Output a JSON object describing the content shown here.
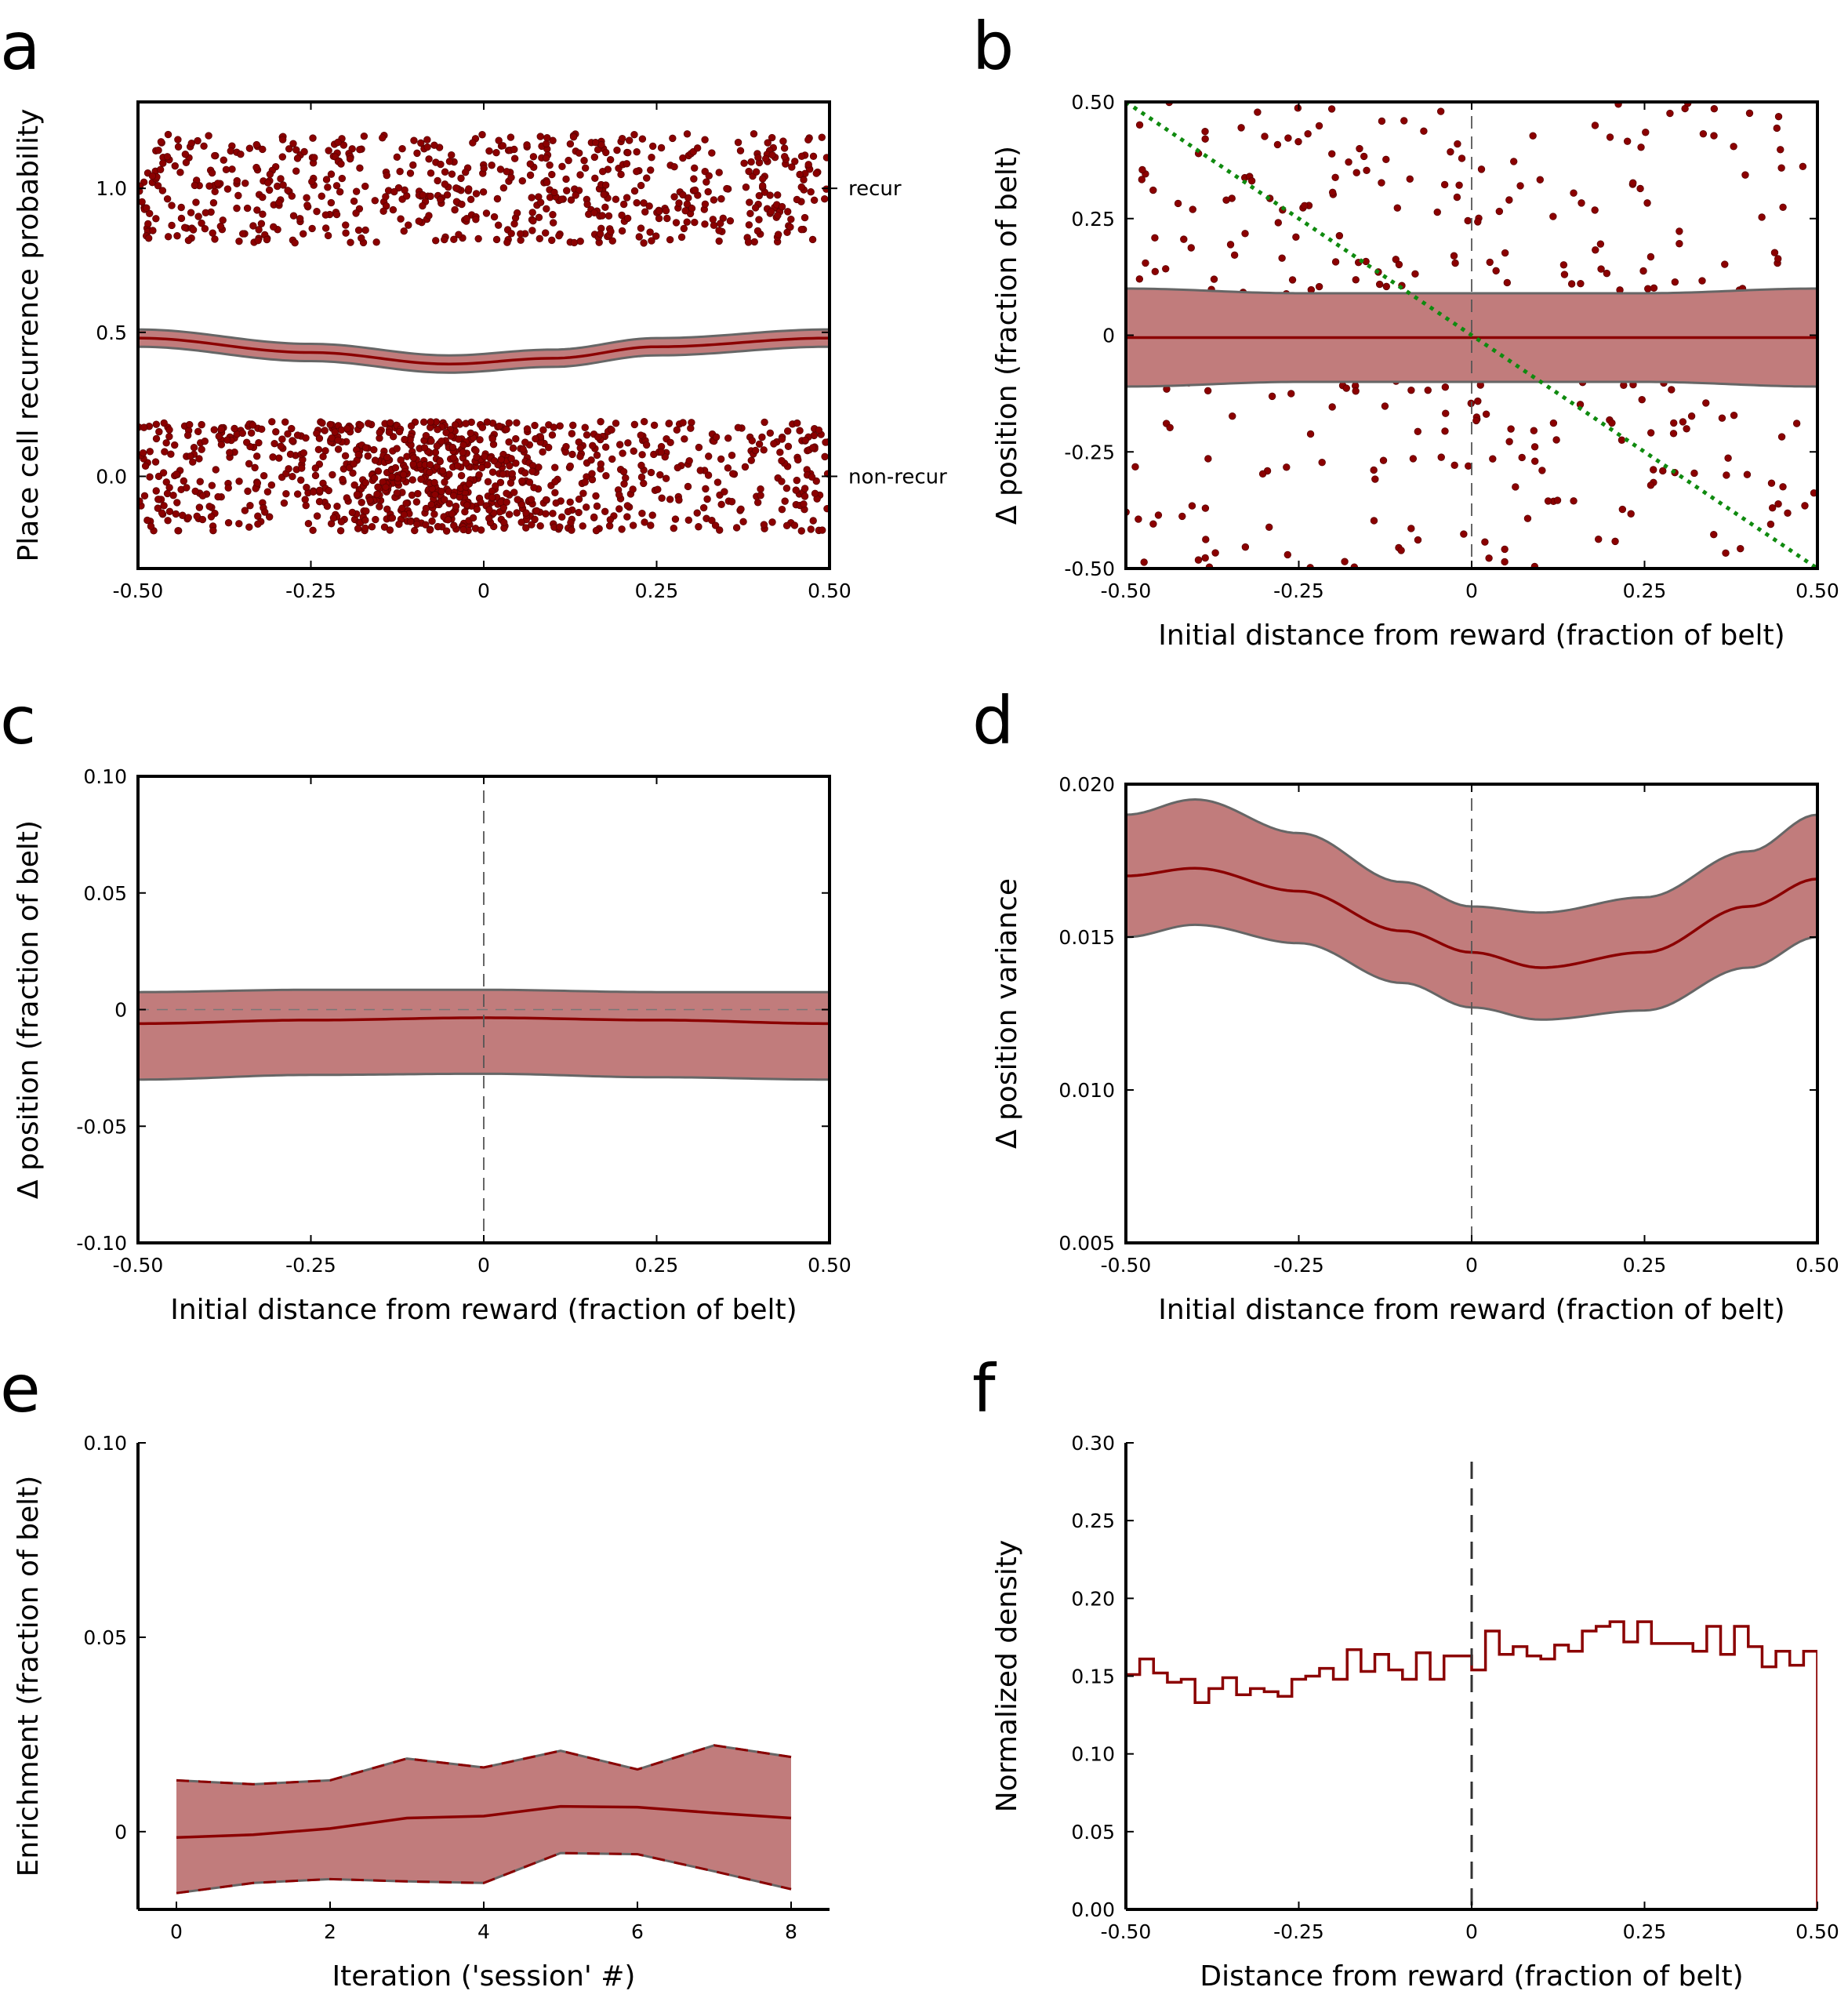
{
  "figure": {
    "colors": {
      "series": "#8b0000",
      "band_fill": "#c17c7c",
      "band_edge": "#666666",
      "diagonal": "#0f8a0f",
      "marker": "#8b0000"
    }
  },
  "chart_data": [
    {
      "panel": "a",
      "type": "scatter",
      "xlabel": "",
      "ylabel": "Place cell recurrence probability",
      "xlim": [
        -0.5,
        0.5
      ],
      "ylim": [
        -0.32,
        1.3
      ],
      "x_ticks": [
        -0.5,
        -0.25,
        0,
        0.25,
        0.5
      ],
      "x_tick_labels": [
        "-0.50",
        "-0.25",
        "0",
        "0.25",
        "0.50"
      ],
      "y_ticks": [
        0,
        0.5,
        1
      ],
      "y_tick_labels": [
        "0.0",
        "0.5",
        "1.0"
      ],
      "annotations": [
        {
          "text": "recur",
          "y": 1.0
        },
        {
          "text": "non-recur",
          "y": 0.0
        }
      ],
      "points_recur": {
        "y_center": 1.0,
        "jitter": 0.19,
        "count": 640,
        "x_range": [
          -0.5,
          0.5
        ]
      },
      "points_nonrecur": {
        "y_center": 0.0,
        "jitter": 0.19,
        "count": 1000,
        "x_range": [
          -0.5,
          0.5
        ],
        "densest_near_x": -0.07
      },
      "fit_line": {
        "x": [
          -0.5,
          -0.25,
          -0.05,
          0.1,
          0.25,
          0.5
        ],
        "y": [
          0.48,
          0.43,
          0.39,
          0.41,
          0.45,
          0.48
        ]
      },
      "fit_band_halfwidth": 0.03
    },
    {
      "panel": "b",
      "type": "scatter",
      "xlabel": "Initial distance from reward (fraction of belt)",
      "ylabel": "Δ position (fraction of belt)",
      "xlim": [
        -0.5,
        0.5
      ],
      "ylim": [
        -0.5,
        0.5
      ],
      "x_ticks": [
        -0.5,
        -0.25,
        0,
        0.25,
        0.5
      ],
      "x_tick_labels": [
        "-0.50",
        "-0.25",
        "0",
        "0.25",
        "0.50"
      ],
      "y_ticks": [
        -0.5,
        -0.25,
        0,
        0.25,
        0.5
      ],
      "y_tick_labels": [
        "-0.50",
        "-0.25",
        "0",
        "0.25",
        "0.50"
      ],
      "points": {
        "count": 700,
        "center_sd": 0.05,
        "center_fraction": 0.55
      },
      "mean_line": {
        "x": [
          -0.5,
          0.5
        ],
        "y": [
          -0.005,
          -0.005
        ]
      },
      "band": {
        "x": [
          -0.5,
          -0.25,
          0,
          0.25,
          0.5
        ],
        "upper": [
          0.1,
          0.09,
          0.09,
          0.09,
          0.1
        ],
        "lower": [
          -0.11,
          -0.1,
          -0.1,
          -0.1,
          -0.11
        ]
      },
      "reference_line": {
        "x": [
          -0.5,
          0.5
        ],
        "y": [
          0.5,
          -0.5
        ],
        "style": "dotted"
      },
      "vline_x": 0
    },
    {
      "panel": "c",
      "type": "line",
      "xlabel": "Initial distance from reward (fraction of belt)",
      "ylabel": "Δ position (fraction of belt)",
      "xlim": [
        -0.5,
        0.5
      ],
      "ylim": [
        -0.1,
        0.1
      ],
      "x_ticks": [
        -0.5,
        -0.25,
        0,
        0.25,
        0.5
      ],
      "x_tick_labels": [
        "-0.50",
        "-0.25",
        "0",
        "0.25",
        "0.50"
      ],
      "y_ticks": [
        -0.1,
        -0.05,
        0,
        0.05,
        0.1
      ],
      "y_tick_labels": [
        "-0.10",
        "-0.05",
        "0",
        "0.05",
        "0.10"
      ],
      "mean_line": {
        "x": [
          -0.5,
          -0.25,
          0,
          0.25,
          0.5
        ],
        "y": [
          -0.006,
          -0.0045,
          -0.0035,
          -0.0045,
          -0.006
        ]
      },
      "band": {
        "x": [
          -0.5,
          -0.25,
          0,
          0.25,
          0.5
        ],
        "upper": [
          0.0075,
          0.0085,
          0.0085,
          0.0075,
          0.0075
        ],
        "lower": [
          -0.03,
          -0.028,
          -0.0275,
          -0.029,
          -0.03
        ]
      },
      "hline_y": 0,
      "vline_x": 0
    },
    {
      "panel": "d",
      "type": "line",
      "xlabel": "Initial distance from reward (fraction of belt)",
      "ylabel": "Δ position variance",
      "xlim": [
        -0.5,
        0.5
      ],
      "ylim": [
        0.005,
        0.02
      ],
      "x_ticks": [
        -0.5,
        -0.25,
        0,
        0.25,
        0.5
      ],
      "x_tick_labels": [
        "-0.50",
        "-0.25",
        "0",
        "0.25",
        "0.50"
      ],
      "y_ticks": [
        0.005,
        0.01,
        0.015,
        0.02
      ],
      "y_tick_labels": [
        "0.005",
        "0.010",
        "0.015",
        "0.020"
      ],
      "mean_line": {
        "x": [
          -0.5,
          -0.4,
          -0.25,
          -0.1,
          0,
          0.1,
          0.25,
          0.4,
          0.5
        ],
        "y": [
          0.017,
          0.01725,
          0.0165,
          0.0152,
          0.0145,
          0.014,
          0.0145,
          0.016,
          0.0169
        ]
      },
      "band": {
        "x": [
          -0.5,
          -0.4,
          -0.25,
          -0.1,
          0,
          0.1,
          0.25,
          0.4,
          0.5
        ],
        "upper": [
          0.019,
          0.0195,
          0.0184,
          0.0168,
          0.016,
          0.0158,
          0.0163,
          0.0178,
          0.019
        ],
        "lower": [
          0.015,
          0.0154,
          0.0148,
          0.0135,
          0.0127,
          0.0123,
          0.0126,
          0.014,
          0.015
        ]
      },
      "vline_x": 0
    },
    {
      "panel": "e",
      "type": "line",
      "xlabel": "Iteration ('session' #)",
      "ylabel": "Enrichment (fraction of belt)",
      "xlim": [
        -0.5,
        8.5
      ],
      "ylim": [
        -0.02,
        0.1
      ],
      "x_ticks": [
        0,
        2,
        4,
        6,
        8
      ],
      "x_tick_labels": [
        "0",
        "2",
        "4",
        "6",
        "8"
      ],
      "y_ticks": [
        0,
        0.05,
        0.1
      ],
      "y_tick_labels": [
        "0",
        "0.05",
        "0.10"
      ],
      "x": [
        0,
        1,
        2,
        3,
        4,
        5,
        6,
        7,
        8
      ],
      "mean": [
        -0.0015,
        -0.0008,
        0.0008,
        0.0035,
        0.004,
        0.0065,
        0.0063,
        0.0048,
        0.0035
      ],
      "upper": [
        0.0132,
        0.0122,
        0.0132,
        0.0188,
        0.0165,
        0.0208,
        0.016,
        0.0222,
        0.0192
      ],
      "lower": [
        -0.0158,
        -0.0132,
        -0.0122,
        -0.0128,
        -0.0132,
        -0.0055,
        -0.0058,
        -0.0102,
        -0.0148
      ]
    },
    {
      "panel": "f",
      "type": "line",
      "step": true,
      "xlabel": "Distance from reward (fraction of belt)",
      "ylabel": "Normalized density",
      "xlim": [
        -0.5,
        0.5
      ],
      "ylim": [
        0,
        0.3
      ],
      "x_ticks": [
        -0.5,
        -0.25,
        0,
        0.25,
        0.5
      ],
      "x_tick_labels": [
        "-0.50",
        "-0.25",
        "0",
        "0.25",
        "0.50"
      ],
      "y_ticks": [
        0,
        0.05,
        0.1,
        0.15,
        0.2,
        0.25,
        0.3
      ],
      "y_tick_labels": [
        "0.00",
        "0.05",
        "0.10",
        "0.15",
        "0.20",
        "0.25",
        "0.30"
      ],
      "bin_width": 0.02,
      "bins_left_edge_start": -0.5,
      "values": [
        0.151,
        0.161,
        0.152,
        0.146,
        0.148,
        0.133,
        0.142,
        0.149,
        0.138,
        0.142,
        0.14,
        0.137,
        0.148,
        0.15,
        0.155,
        0.148,
        0.167,
        0.153,
        0.164,
        0.154,
        0.148,
        0.165,
        0.148,
        0.163,
        0.163,
        0.154,
        0.179,
        0.164,
        0.169,
        0.163,
        0.161,
        0.17,
        0.166,
        0.179,
        0.182,
        0.185,
        0.172,
        0.185,
        0.171,
        0.171,
        0.171,
        0.166,
        0.182,
        0.164,
        0.182,
        0.169,
        0.156,
        0.166,
        0.157,
        0.166
      ],
      "vline_x": 0
    }
  ]
}
